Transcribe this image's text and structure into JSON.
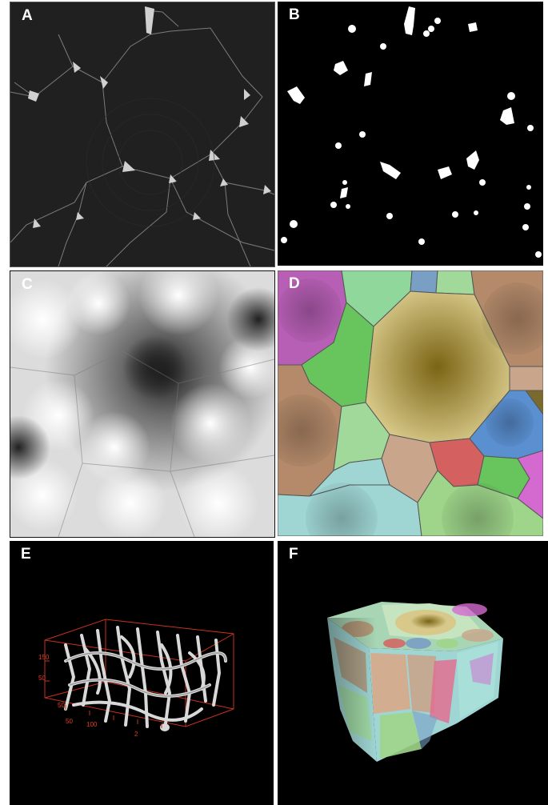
{
  "figure": {
    "panels": [
      {
        "id": "A",
        "label": "A",
        "content": "grayscale cross-section slice"
      },
      {
        "id": "B",
        "label": "B",
        "content": "binary segmented slice"
      },
      {
        "id": "C",
        "label": "C",
        "content": "distance map"
      },
      {
        "id": "D",
        "label": "D",
        "content": "colored region partition"
      },
      {
        "id": "E",
        "label": "E",
        "content": "3D rendered lattice with axes"
      },
      {
        "id": "F",
        "label": "F",
        "content": "3D colored cube"
      }
    ],
    "axis_labels_E": [
      "150",
      "50",
      "50",
      "50",
      "100",
      "2"
    ]
  },
  "colors": {
    "panel_bg_dark": "#000000",
    "axis_red": "#e04020",
    "region_palette": [
      "#b75fb5",
      "#8fd79a",
      "#7a9fc4",
      "#a0d99a",
      "#b48a6a",
      "#9b8640",
      "#68c45c",
      "#9fd6d4",
      "#d46060",
      "#5a8fd0",
      "#c8a58b",
      "#9ed58a",
      "#d46ad0"
    ]
  }
}
